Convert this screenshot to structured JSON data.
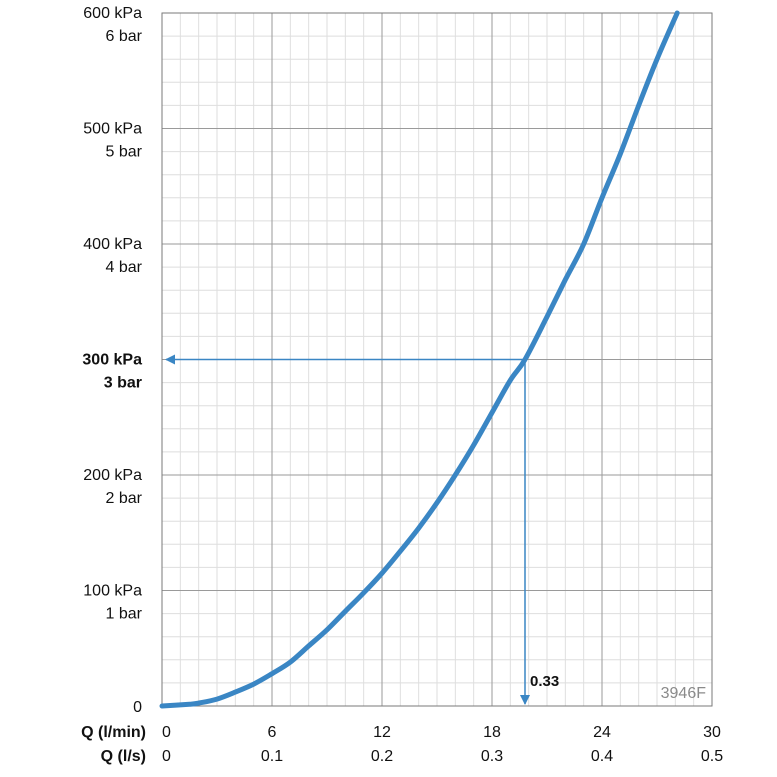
{
  "chart_data": {
    "type": "line",
    "x_primary": {
      "label": "Q (l/min)",
      "ticks": [
        "0",
        "6",
        "12",
        "18",
        "24",
        "30"
      ],
      "range": [
        0,
        30
      ]
    },
    "x_secondary": {
      "label": "Q (l/s)",
      "ticks": [
        "0",
        "0.1",
        "0.2",
        "0.3",
        "0.4",
        "0.5"
      ],
      "range": [
        0,
        0.5
      ]
    },
    "y_axis": {
      "range": [
        0,
        600
      ],
      "ticks": [
        {
          "value": 0,
          "line1": "0",
          "line2": ""
        },
        {
          "value": 100,
          "line1": "100 kPa",
          "line2": "1 bar"
        },
        {
          "value": 200,
          "line1": "200 kPa",
          "line2": "2 bar"
        },
        {
          "value": 300,
          "line1": "300 kPa",
          "line2": "3 bar",
          "bold": true
        },
        {
          "value": 400,
          "line1": "400 kPa",
          "line2": "4 bar"
        },
        {
          "value": 500,
          "line1": "500 kPa",
          "line2": "5 bar"
        },
        {
          "value": 600,
          "line1": "600 kPa",
          "line2": "6 bar"
        }
      ]
    },
    "grid": true,
    "series": [
      {
        "color": "#3a86c4",
        "x": [
          0,
          1.5,
          2,
          3,
          4,
          5,
          6,
          7,
          8,
          9,
          10,
          11,
          12,
          13,
          14,
          15,
          16,
          17,
          18,
          19,
          19.8,
          21,
          22,
          23,
          24,
          25,
          26,
          27,
          28.1
        ],
        "y": [
          0,
          1.5,
          2.5,
          6,
          12,
          19,
          28,
          38,
          52,
          66,
          82,
          98,
          115,
          134,
          154,
          176,
          200,
          226,
          254,
          282,
          300,
          337,
          369,
          400,
          440,
          478,
          520,
          560,
          600
        ]
      }
    ],
    "annotations": {
      "reference_point": {
        "x": 19.8,
        "y": 300
      },
      "color": "#3a86c4",
      "label": "0.33"
    },
    "watermark": "3946F"
  }
}
